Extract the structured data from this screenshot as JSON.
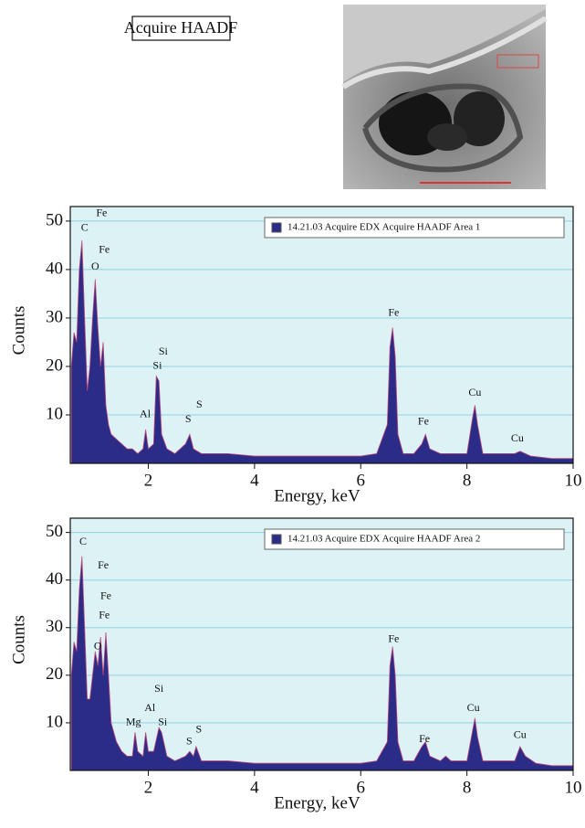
{
  "header_label": "Acquire HAADF",
  "chart_data": [
    {
      "type": "area",
      "ylabel": "Counts",
      "xlabel": "Energy, keV",
      "xlim": [
        0.53,
        10
      ],
      "ylim": [
        0,
        53
      ],
      "xticks": [
        2,
        4,
        6,
        8,
        10
      ],
      "yticks": [
        10,
        20,
        30,
        40,
        50
      ],
      "grid": true,
      "legend": "upper right",
      "background": "#dcf2f5",
      "x": [
        0.55,
        0.6,
        0.65,
        0.7,
        0.75,
        0.8,
        0.85,
        0.9,
        0.95,
        1.0,
        1.05,
        1.1,
        1.15,
        1.2,
        1.25,
        1.3,
        1.4,
        1.5,
        1.6,
        1.7,
        1.8,
        1.9,
        1.95,
        2.0,
        2.1,
        2.15,
        2.2,
        2.25,
        2.35,
        2.5,
        2.7,
        2.78,
        2.85,
        3.0,
        3.5,
        4.0,
        4.5,
        5.0,
        5.5,
        6.0,
        6.3,
        6.5,
        6.55,
        6.6,
        6.65,
        6.7,
        6.8,
        7.0,
        7.15,
        7.22,
        7.3,
        7.5,
        7.7,
        8.0,
        8.1,
        8.15,
        8.2,
        8.3,
        8.6,
        8.9,
        9.0,
        9.2,
        9.6,
        10
      ],
      "series": [
        {
          "name": "14.21.03 Acquire EDX Acquire HAADF Area 1",
          "color": "#2a2c88",
          "values": [
            20,
            27,
            25,
            40,
            46,
            30,
            15,
            20,
            30,
            38,
            28,
            20,
            25,
            12,
            8,
            6,
            5,
            4,
            3,
            3,
            2,
            3,
            7,
            3,
            4,
            18,
            17,
            6,
            3,
            2,
            4,
            6,
            3,
            2,
            2,
            1.5,
            1.5,
            1.5,
            1.5,
            1.5,
            2,
            8,
            24,
            28,
            22,
            6,
            2,
            2,
            4,
            6,
            3,
            2,
            2,
            2,
            9,
            12,
            8,
            2,
            2,
            2,
            2.5,
            1.5,
            1,
            1
          ]
        }
      ],
      "annotations": [
        {
          "text": "C",
          "x": 0.8,
          "y": 48.5
        },
        {
          "text": "Fe",
          "x": 1.12,
          "y": 51.5
        },
        {
          "text": "Fe",
          "x": 1.17,
          "y": 44
        },
        {
          "text": "O",
          "x": 1.0,
          "y": 40.5
        },
        {
          "text": "Si",
          "x": 2.28,
          "y": 23
        },
        {
          "text": "Si",
          "x": 2.17,
          "y": 20
        },
        {
          "text": "Al",
          "x": 1.94,
          "y": 10
        },
        {
          "text": "S",
          "x": 2.96,
          "y": 12
        },
        {
          "text": "S",
          "x": 2.75,
          "y": 9
        },
        {
          "text": "Fe",
          "x": 6.62,
          "y": 31
        },
        {
          "text": "Fe",
          "x": 7.18,
          "y": 8.5
        },
        {
          "text": "Cu",
          "x": 8.15,
          "y": 14.5
        },
        {
          "text": "Cu",
          "x": 8.95,
          "y": 5
        }
      ]
    },
    {
      "type": "area",
      "ylabel": "Counts",
      "xlabel": "Energy, keV",
      "xlim": [
        0.53,
        10
      ],
      "ylim": [
        0,
        53
      ],
      "xticks": [
        2,
        4,
        6,
        8,
        10
      ],
      "yticks": [
        10,
        20,
        30,
        40,
        50
      ],
      "grid": true,
      "legend": "upper right",
      "background": "#dcf2f5",
      "x": [
        0.55,
        0.6,
        0.65,
        0.7,
        0.75,
        0.8,
        0.85,
        0.9,
        0.95,
        1.0,
        1.05,
        1.1,
        1.15,
        1.2,
        1.25,
        1.3,
        1.4,
        1.5,
        1.6,
        1.7,
        1.75,
        1.8,
        1.9,
        1.95,
        2.0,
        2.1,
        2.2,
        2.25,
        2.35,
        2.5,
        2.7,
        2.78,
        2.85,
        2.9,
        3.0,
        3.5,
        4.0,
        4.5,
        5.0,
        5.5,
        6.0,
        6.3,
        6.5,
        6.55,
        6.6,
        6.65,
        6.7,
        6.8,
        7.0,
        7.15,
        7.22,
        7.3,
        7.5,
        7.6,
        7.7,
        8.0,
        8.1,
        8.15,
        8.2,
        8.3,
        8.6,
        8.9,
        9.0,
        9.1,
        9.3,
        9.6,
        10
      ],
      "series": [
        {
          "name": "14.21.03 Acquire EDX Acquire HAADF Area 2",
          "color": "#2a2c88",
          "values": [
            20,
            27,
            25,
            38,
            45,
            30,
            15,
            15,
            20,
            25,
            22,
            28,
            20,
            29,
            20,
            10,
            6,
            4,
            3,
            3,
            8,
            4,
            3,
            8,
            4,
            4,
            9,
            8,
            3,
            2,
            3,
            4,
            3,
            5,
            2,
            2,
            1.5,
            1.5,
            1.5,
            1.5,
            1.5,
            2,
            6,
            22,
            26,
            20,
            6,
            2,
            2,
            5,
            6,
            3,
            2,
            3,
            2,
            2,
            8,
            11,
            7,
            2,
            2,
            2,
            5,
            3,
            1.5,
            1,
            1
          ]
        }
      ],
      "annotations": [
        {
          "text": "C",
          "x": 0.77,
          "y": 48
        },
        {
          "text": "Fe",
          "x": 1.15,
          "y": 43
        },
        {
          "text": "Fe",
          "x": 1.2,
          "y": 36.5
        },
        {
          "text": "Fe",
          "x": 1.17,
          "y": 32.5
        },
        {
          "text": "O",
          "x": 1.05,
          "y": 26
        },
        {
          "text": "Si",
          "x": 2.2,
          "y": 17
        },
        {
          "text": "Al",
          "x": 2.03,
          "y": 13
        },
        {
          "text": "Si",
          "x": 2.27,
          "y": 10
        },
        {
          "text": "Mg",
          "x": 1.72,
          "y": 10
        },
        {
          "text": "S",
          "x": 2.95,
          "y": 8.5
        },
        {
          "text": "S",
          "x": 2.77,
          "y": 6
        },
        {
          "text": "Fe",
          "x": 6.62,
          "y": 27.5
        },
        {
          "text": "Fe",
          "x": 7.2,
          "y": 6.5
        },
        {
          "text": "Cu",
          "x": 8.12,
          "y": 13
        },
        {
          "text": "Cu",
          "x": 9.0,
          "y": 7.3
        }
      ]
    }
  ]
}
